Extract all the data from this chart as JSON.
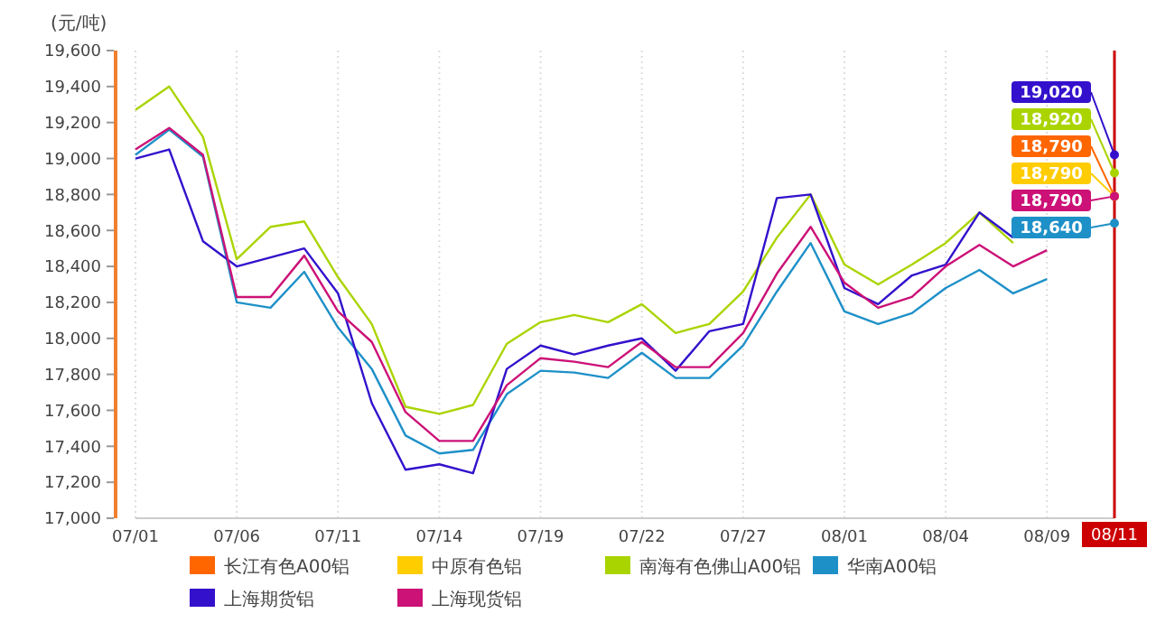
{
  "chart_data": {
    "type": "line",
    "ylabel": "(元/吨)",
    "categories": [
      "07/01",
      null,
      null,
      "07/06",
      null,
      null,
      "07/11",
      null,
      null,
      "07/14",
      null,
      null,
      "07/19",
      null,
      null,
      "07/22",
      null,
      null,
      "07/27",
      null,
      null,
      "08/01",
      null,
      null,
      "08/04",
      null,
      null,
      "08/09",
      null,
      "08/11"
    ],
    "series": [
      {
        "name": "长江有色A00铝",
        "color": "#ff6600",
        "marker": "circle",
        "values": [
          null,
          null,
          null,
          null,
          null,
          null,
          null,
          null,
          null,
          null,
          null,
          null,
          null,
          null,
          null,
          null,
          null,
          null,
          null,
          null,
          null,
          null,
          null,
          null,
          null,
          null,
          null,
          null,
          null,
          18790
        ],
        "value_labels": [
          null,
          null,
          null,
          null,
          null,
          null,
          null,
          null,
          null,
          null,
          null,
          null,
          null,
          null,
          null,
          null,
          null,
          null,
          null,
          null,
          null,
          null,
          null,
          null,
          null,
          null,
          null,
          null,
          null,
          "18,790"
        ]
      },
      {
        "name": "中原有色铝",
        "color": "#ffcc00",
        "marker": "circle",
        "values": [
          null,
          null,
          null,
          null,
          null,
          null,
          null,
          null,
          null,
          null,
          null,
          null,
          null,
          null,
          null,
          null,
          null,
          null,
          null,
          null,
          null,
          null,
          null,
          null,
          null,
          null,
          null,
          null,
          null,
          18790
        ],
        "value_labels": [
          null,
          null,
          null,
          null,
          null,
          null,
          null,
          null,
          null,
          null,
          null,
          null,
          null,
          null,
          null,
          null,
          null,
          null,
          null,
          null,
          null,
          null,
          null,
          null,
          null,
          null,
          null,
          null,
          null,
          "18,790"
        ]
      },
      {
        "name": "南海有色佛山A00铝",
        "color": "#aad400",
        "values": [
          19270,
          19400,
          19120,
          18440,
          18620,
          18650,
          18340,
          18080,
          17620,
          17580,
          17630,
          17970,
          18090,
          18130,
          18090,
          18190,
          18030,
          18080,
          18260,
          18560,
          18800,
          18410,
          18300,
          18410,
          18530,
          18700,
          18530,
          null,
          null,
          18920
        ],
        "value_labels": [
          null,
          null,
          null,
          null,
          null,
          null,
          null,
          null,
          null,
          null,
          null,
          null,
          null,
          null,
          null,
          null,
          null,
          null,
          null,
          null,
          null,
          null,
          null,
          null,
          null,
          null,
          null,
          null,
          null,
          "18,920"
        ]
      },
      {
        "name": "华南A00铝",
        "color": "#1e90c8",
        "values": [
          19020,
          19160,
          19010,
          18200,
          18170,
          18370,
          18060,
          17830,
          17460,
          17360,
          17380,
          17690,
          17820,
          17810,
          17780,
          17920,
          17780,
          17780,
          17960,
          18260,
          18530,
          18150,
          18080,
          18140,
          18280,
          18380,
          18250,
          18330,
          null,
          18640
        ],
        "value_labels": [
          null,
          null,
          null,
          null,
          null,
          null,
          null,
          null,
          null,
          null,
          null,
          null,
          null,
          null,
          null,
          null,
          null,
          null,
          null,
          null,
          null,
          null,
          null,
          null,
          null,
          null,
          null,
          null,
          null,
          "18,640"
        ]
      },
      {
        "name": "上海期货铝",
        "color": "#3311cc",
        "values": [
          19000,
          19050,
          18540,
          18400,
          18450,
          18500,
          18250,
          17640,
          17270,
          17300,
          17250,
          17830,
          17960,
          17910,
          17960,
          18000,
          17820,
          18040,
          18080,
          18780,
          18800,
          18280,
          18190,
          18350,
          18410,
          18700,
          18560,
          null,
          null,
          19020
        ],
        "value_labels": [
          null,
          null,
          null,
          null,
          null,
          null,
          null,
          null,
          null,
          null,
          null,
          null,
          null,
          null,
          null,
          null,
          null,
          null,
          null,
          null,
          null,
          null,
          null,
          null,
          null,
          null,
          null,
          null,
          null,
          "19,020"
        ]
      },
      {
        "name": "上海现货铝",
        "color": "#cc1177",
        "values": [
          19050,
          19170,
          19020,
          18230,
          18230,
          18460,
          18150,
          17980,
          17590,
          17430,
          17430,
          17740,
          17890,
          17870,
          17840,
          17980,
          17840,
          17840,
          18030,
          18360,
          18620,
          18310,
          18170,
          18230,
          18400,
          18520,
          18400,
          18490,
          null,
          18790
        ],
        "value_labels": [
          null,
          null,
          null,
          null,
          null,
          null,
          null,
          null,
          null,
          null,
          null,
          null,
          null,
          null,
          null,
          null,
          null,
          null,
          null,
          null,
          null,
          null,
          null,
          null,
          null,
          null,
          null,
          null,
          null,
          "18,790"
        ]
      }
    ],
    "ylim": [
      17000,
      19600
    ],
    "yticks": [
      {
        "value": 17000,
        "label": "17,000"
      },
      {
        "value": 17200,
        "label": "17,200"
      },
      {
        "value": 17400,
        "label": "17,400"
      },
      {
        "value": 17600,
        "label": "17,600"
      },
      {
        "value": 17800,
        "label": "17,800"
      },
      {
        "value": 18000,
        "label": "18,000"
      },
      {
        "value": 18200,
        "label": "18,200"
      },
      {
        "value": 18400,
        "label": "18,400"
      },
      {
        "value": 18600,
        "label": "18,600"
      },
      {
        "value": 18800,
        "label": "18,800"
      },
      {
        "value": 19000,
        "label": "19,000"
      },
      {
        "value": 19200,
        "label": "19,200"
      },
      {
        "value": 19400,
        "label": "19,400"
      },
      {
        "value": 19600,
        "label": "19,600"
      }
    ],
    "ref_lines": [
      {
        "axis": "x",
        "value": "08/11",
        "label": null,
        "color": "#cc0000"
      }
    ],
    "grid": "x",
    "legend": "bottom",
    "line_style": "solid"
  }
}
